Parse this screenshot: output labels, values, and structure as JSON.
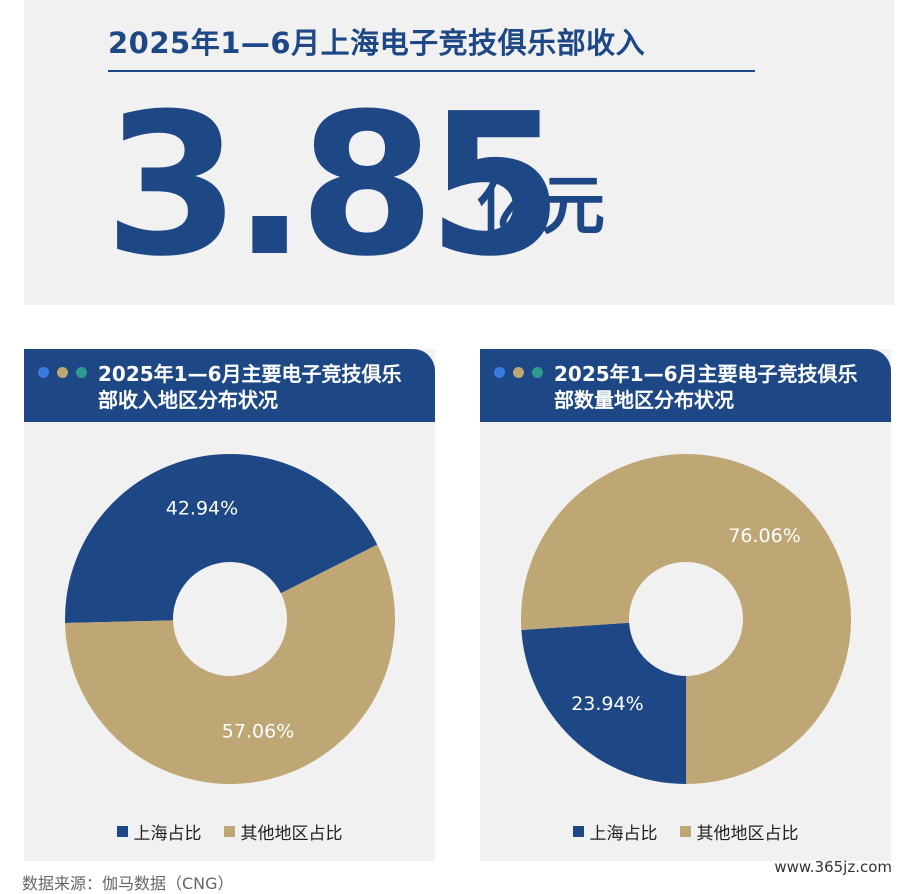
{
  "headline": {
    "title": "2025年1—6月上海电子竞技俱乐部收入",
    "value": "3.85",
    "unit": "亿元"
  },
  "colors": {
    "navy": "#1e4785",
    "tan": "#bfa675",
    "dot_blue": "#3a7be0",
    "dot_tan": "#bfa675",
    "dot_teal": "#2e9b8f"
  },
  "chart_data": [
    {
      "type": "pie",
      "donut": true,
      "title_line1": "2025年1—6月主要电子竞技俱乐",
      "title_line2": "部收入地区分布状况",
      "series": [
        {
          "name": "上海占比",
          "value": 42.94,
          "label": "42.94%",
          "color": "#1e4785"
        },
        {
          "name": "其他地区占比",
          "value": 57.06,
          "label": "57.06%",
          "color": "#bfa675"
        }
      ],
      "legend_position": "bottom"
    },
    {
      "type": "pie",
      "donut": true,
      "title_line1": "2025年1—6月主要电子竞技俱乐",
      "title_line2": "部数量地区分布状况",
      "series": [
        {
          "name": "上海占比",
          "value": 23.94,
          "label": "23.94%",
          "color": "#1e4785"
        },
        {
          "name": "其他地区占比",
          "value": 76.06,
          "label": "76.06%",
          "color": "#bfa675"
        }
      ],
      "legend_position": "bottom"
    }
  ],
  "footer": {
    "source": "数据来源：伽马数据（CNG）",
    "watermark": "www.365jz.com"
  }
}
